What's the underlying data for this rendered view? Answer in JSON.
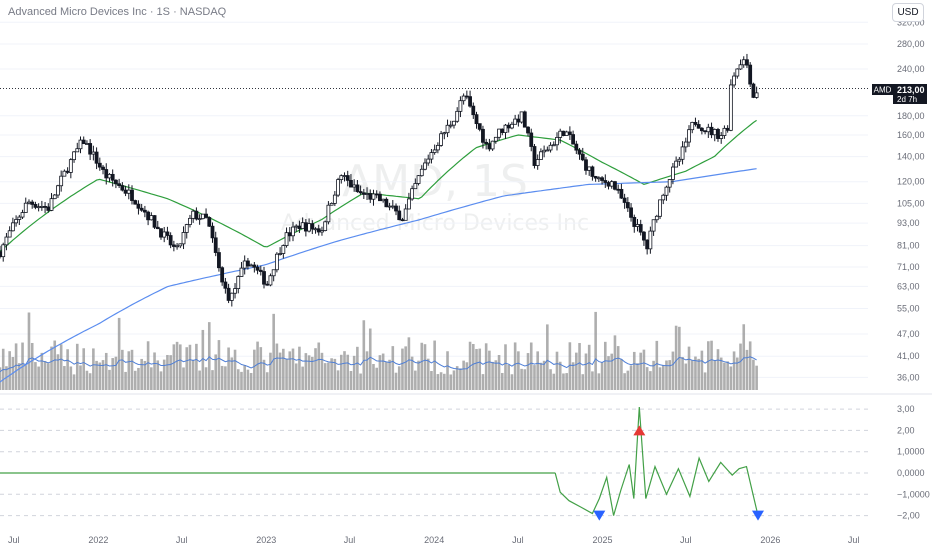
{
  "header": {
    "title": "Advanced Micro Devices Inc · 1S · NASDAQ"
  },
  "currency_button": "USD",
  "watermark": {
    "symbol": "AMD, 1S",
    "name": "Advanced Micro Devices Inc"
  },
  "price_badge": {
    "ticker": "AMD",
    "price": "213,00",
    "countdown": "2d 7h"
  },
  "colors": {
    "candle": "#131722",
    "ma_green": "#2e9e3c",
    "ma_blue": "#5b8def",
    "volume": "#8c8c8c",
    "volume_avg": "#4f7fd6",
    "osc": "#43a047",
    "marker_up": "#e53935",
    "marker_down": "#2962ff"
  },
  "price_axis": {
    "log_scale": true,
    "ticks": [
      {
        "label": "320,00",
        "v": 320
      },
      {
        "label": "280,00",
        "v": 280
      },
      {
        "label": "240,00",
        "v": 240
      },
      {
        "label": "180,00",
        "v": 180
      },
      {
        "label": "160,00",
        "v": 160
      },
      {
        "label": "140,00",
        "v": 140
      },
      {
        "label": "120,00",
        "v": 120
      },
      {
        "label": "105,00",
        "v": 105
      },
      {
        "label": "93,00",
        "v": 93
      },
      {
        "label": "81,00",
        "v": 81
      },
      {
        "label": "71,00",
        "v": 71
      },
      {
        "label": "63,00",
        "v": 63
      },
      {
        "label": "55,00",
        "v": 55
      },
      {
        "label": "47,00",
        "v": 47
      },
      {
        "label": "41,00",
        "v": 41
      },
      {
        "label": "36,00",
        "v": 36
      }
    ]
  },
  "osc_axis": {
    "ticks": [
      {
        "label": "3,00",
        "v": 3
      },
      {
        "label": "2,00",
        "v": 2
      },
      {
        "label": "1,0000",
        "v": 1
      },
      {
        "label": "0,0000",
        "v": 0
      },
      {
        "label": "−1,0000",
        "v": -1
      },
      {
        "label": "−2,00",
        "v": -2
      }
    ]
  },
  "time_axis": {
    "labels": [
      "Jul",
      "2022",
      "Jul",
      "2023",
      "Jul",
      "2024",
      "Jul",
      "2025",
      "Jul",
      "2026",
      "Jul"
    ]
  },
  "chart_data": {
    "type": "candlestick",
    "title": "Advanced Micro Devices Inc · 1S · NASDAQ",
    "interval": "1W",
    "last_price": 213.0,
    "price_anchors": [
      [
        "2021-06-01",
        78
      ],
      [
        "2021-08-01",
        106
      ],
      [
        "2021-09-15",
        102
      ],
      [
        "2021-11-29",
        155
      ],
      [
        "2022-01-15",
        125
      ],
      [
        "2022-03-15",
        110
      ],
      [
        "2022-05-10",
        90
      ],
      [
        "2022-06-20",
        78
      ],
      [
        "2022-07-25",
        98
      ],
      [
        "2022-08-25",
        95
      ],
      [
        "2022-09-25",
        65
      ],
      [
        "2022-10-15",
        58
      ],
      [
        "2022-11-20",
        74
      ],
      [
        "2023-01-03",
        64
      ],
      [
        "2023-02-10",
        85
      ],
      [
        "2023-03-15",
        92
      ],
      [
        "2023-05-01",
        89
      ],
      [
        "2023-06-13",
        125
      ],
      [
        "2023-07-20",
        112
      ],
      [
        "2023-09-01",
        108
      ],
      [
        "2023-10-25",
        96
      ],
      [
        "2023-12-20",
        140
      ],
      [
        "2024-02-10",
        175
      ],
      [
        "2024-03-07",
        205
      ],
      [
        "2024-03-25",
        180
      ],
      [
        "2024-04-25",
        148
      ],
      [
        "2024-05-25",
        165
      ],
      [
        "2024-07-10",
        180
      ],
      [
        "2024-08-05",
        135
      ],
      [
        "2024-09-10",
        150
      ],
      [
        "2024-10-10",
        165
      ],
      [
        "2024-11-15",
        138
      ],
      [
        "2024-12-20",
        120
      ],
      [
        "2025-01-20",
        120
      ],
      [
        "2025-02-25",
        100
      ],
      [
        "2025-04-08",
        80
      ],
      [
        "2025-05-15",
        115
      ],
      [
        "2025-06-20",
        140
      ],
      [
        "2025-07-20",
        175
      ],
      [
        "2025-08-15",
        165
      ],
      [
        "2025-09-15",
        160
      ],
      [
        "2025-10-01",
        170
      ],
      [
        "2025-10-08",
        225
      ],
      [
        "2025-10-30",
        255
      ],
      [
        "2025-11-10",
        250
      ],
      [
        "2025-11-25",
        203
      ],
      [
        "2025-12-05",
        213
      ]
    ],
    "ma_green_anchors": [
      [
        "2021-06-01",
        78
      ],
      [
        "2022-01-01",
        122
      ],
      [
        "2022-06-01",
        108
      ],
      [
        "2022-12-31",
        80
      ],
      [
        "2023-05-01",
        95
      ],
      [
        "2023-08-01",
        112
      ],
      [
        "2023-12-01",
        108
      ],
      [
        "2024-04-01",
        148
      ],
      [
        "2024-07-01",
        160
      ],
      [
        "2024-10-01",
        155
      ],
      [
        "2025-01-01",
        135
      ],
      [
        "2025-04-01",
        118
      ],
      [
        "2025-07-01",
        128
      ],
      [
        "2025-09-01",
        140
      ],
      [
        "2025-12-01",
        175
      ]
    ],
    "ma_blue_anchors": [
      [
        "2021-06-01",
        35
      ],
      [
        "2022-01-01",
        50
      ],
      [
        "2022-06-01",
        63
      ],
      [
        "2022-12-31",
        72
      ],
      [
        "2023-06-01",
        83
      ],
      [
        "2023-12-01",
        95
      ],
      [
        "2024-06-01",
        110
      ],
      [
        "2024-12-01",
        118
      ],
      [
        "2025-06-01",
        120
      ],
      [
        "2025-12-01",
        130
      ]
    ],
    "oscillator": {
      "zero_until": "2024-09-20",
      "anchors": [
        [
          "2024-09-20",
          0
        ],
        [
          "2024-10-01",
          -0.9
        ],
        [
          "2024-10-20",
          -1.3
        ],
        [
          "2024-11-15",
          -1.6
        ],
        [
          "2024-12-10",
          -1.9
        ],
        [
          "2024-12-25",
          -1.2
        ],
        [
          "2025-01-10",
          -0.2
        ],
        [
          "2025-01-25",
          -2.0
        ],
        [
          "2025-02-10",
          -0.8
        ],
        [
          "2025-02-28",
          0.4
        ],
        [
          "2025-03-10",
          -1.2
        ],
        [
          "2025-03-22",
          3.1
        ],
        [
          "2025-04-05",
          -1.2
        ],
        [
          "2025-04-25",
          0.3
        ],
        [
          "2025-05-20",
          -1.0
        ],
        [
          "2025-06-15",
          0.2
        ],
        [
          "2025-07-10",
          -1.1
        ],
        [
          "2025-07-30",
          0.7
        ],
        [
          "2025-08-20",
          -0.4
        ],
        [
          "2025-09-15",
          0.5
        ],
        [
          "2025-10-10",
          -0.1
        ],
        [
          "2025-10-25",
          0.2
        ],
        [
          "2025-11-10",
          0.3
        ],
        [
          "2025-12-05",
          -2.0
        ]
      ],
      "markers": [
        {
          "date": "2024-12-25",
          "dir": "down",
          "value": -2.0
        },
        {
          "date": "2025-03-22",
          "dir": "up",
          "value": 2.0
        },
        {
          "date": "2025-12-05",
          "dir": "down",
          "value": -2.0
        }
      ]
    }
  }
}
